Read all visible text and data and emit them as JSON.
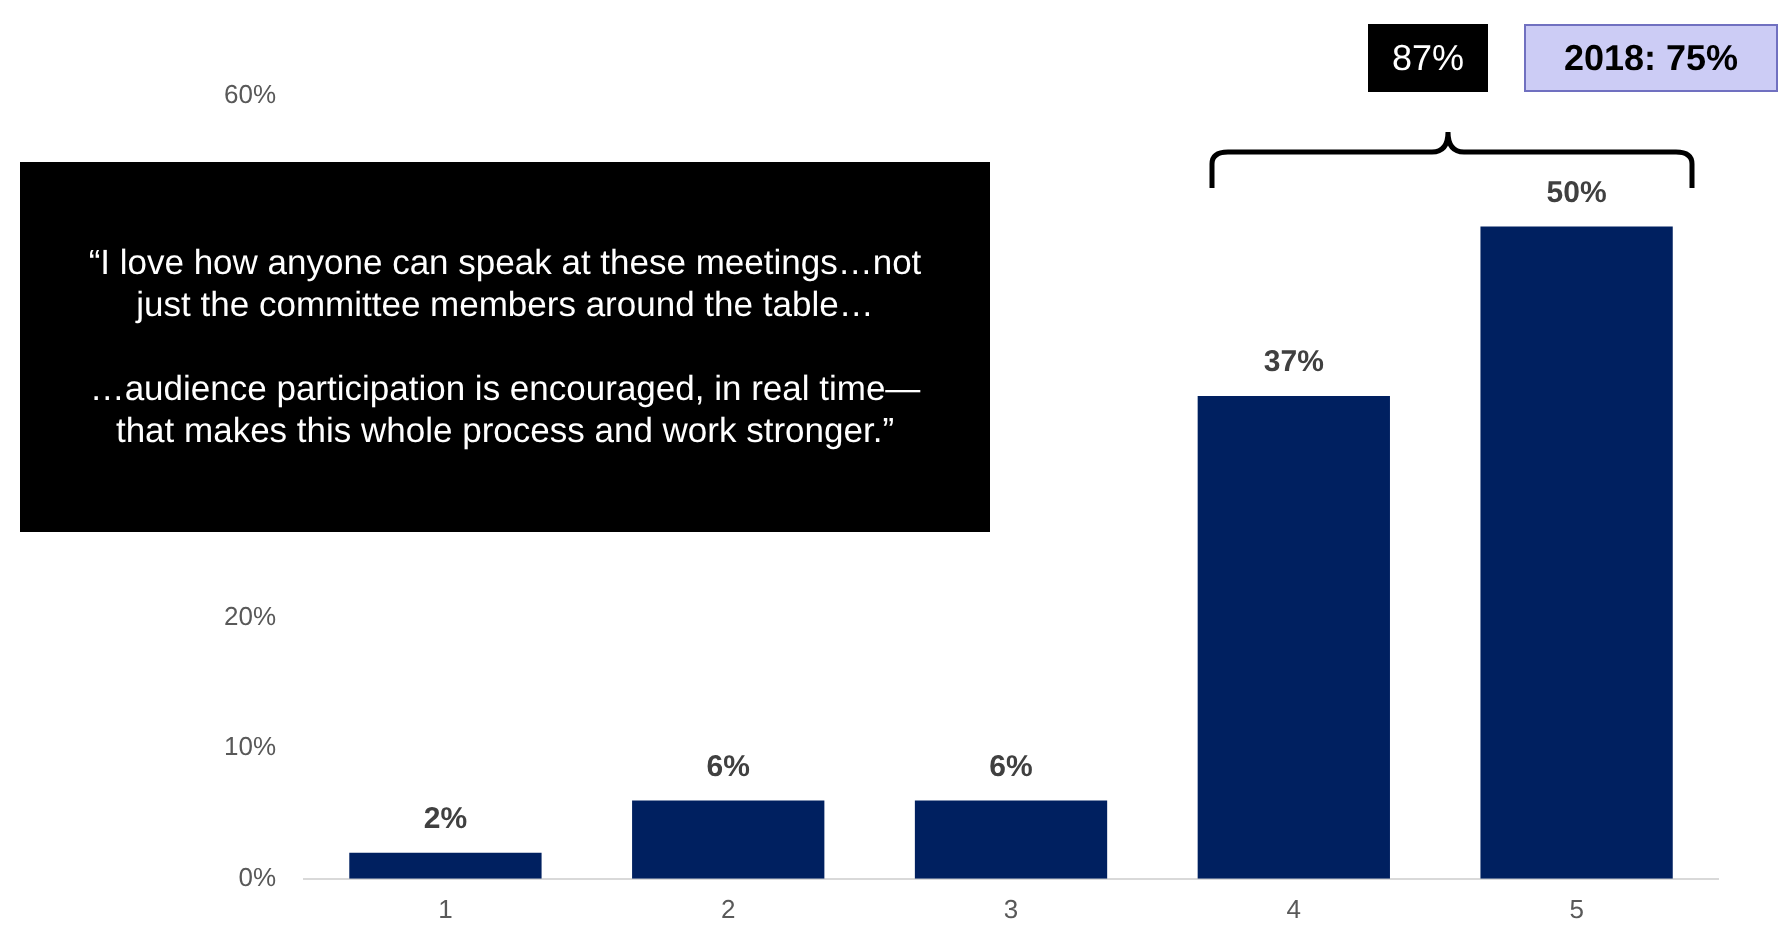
{
  "chart_data": {
    "type": "bar",
    "categories": [
      "1",
      "2",
      "3",
      "4",
      "5"
    ],
    "values": [
      2,
      6,
      6,
      37,
      50
    ],
    "color": "#002060",
    "ylim": [
      0,
      60
    ],
    "yticks": [
      {
        "value": 0,
        "label": "0%"
      },
      {
        "value": 10,
        "label": "10%"
      },
      {
        "value": 20,
        "label": "20%"
      },
      {
        "value": 60,
        "label": "60%"
      }
    ],
    "grid": false,
    "legend": false,
    "value_labels": [
      "2%",
      "6%",
      "6%",
      "37%",
      "50%"
    ],
    "annotations": [
      "“I love how anyone can speak at these meetings…not just the committee members around the table…\n\n…audience participation is encouraged, in real time—that makes this whole process and work stronger.”",
      "87%",
      "2018: 75%"
    ]
  }
}
